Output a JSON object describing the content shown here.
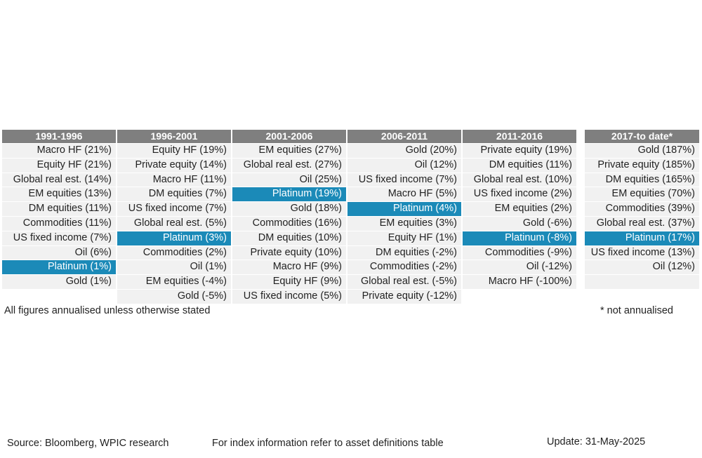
{
  "chart_data": {
    "type": "table",
    "highlight_colors": {
      "platinum_bg": "#1b8ab8",
      "header_bg": "#7f7f7f",
      "cell_bg": "#f1f1f1"
    },
    "highlight_item": "Platinum",
    "columns": [
      {
        "header": "1991-1996",
        "rows": [
          "Macro HF (21%)",
          "Equity HF (21%)",
          "Global real est. (14%)",
          "EM equities (13%)",
          "DM equities (11%)",
          "Commodities (11%)",
          "US fixed income (7%)",
          "Oil (6%)",
          "Platinum (1%)",
          "Gold (1%)"
        ]
      },
      {
        "header": "1996-2001",
        "rows": [
          "Equity HF (19%)",
          "Private equity (14%)",
          "Macro HF (11%)",
          "DM equities (7%)",
          "US fixed income (7%)",
          "Global real est. (5%)",
          "Platinum (3%)",
          "Commodities (2%)",
          "Oil (1%)",
          "EM equities (-4%)",
          "Gold (-5%)"
        ]
      },
      {
        "header": "2001-2006",
        "rows": [
          "EM equities (27%)",
          "Global real est. (27%)",
          "Oil (25%)",
          "Platinum (19%)",
          "Gold (18%)",
          "Commodities (16%)",
          "DM equities (10%)",
          "Private equity (10%)",
          "Macro HF (9%)",
          "Equity HF (9%)",
          "US fixed income (5%)"
        ]
      },
      {
        "header": "2006-2011",
        "rows": [
          "Gold (20%)",
          "Oil (12%)",
          "US fixed income (7%)",
          "Macro HF (5%)",
          "Platinum (4%)",
          "EM equities (3%)",
          "Equity HF (1%)",
          "DM equities (-2%)",
          "Commodities (-2%)",
          "Global real est. (-5%)",
          "Private equity (-12%)"
        ]
      },
      {
        "header": "2011-2016",
        "rows": [
          "Private equity (19%)",
          "DM equities (11%)",
          "Global real est. (10%)",
          "US fixed income (2%)",
          "EM equities (2%)",
          "Gold (-6%)",
          "Platinum (-8%)",
          "Commodities (-9%)",
          "Oil (-12%)",
          "Macro HF (-100%)"
        ]
      },
      {
        "header": "2017-to date*",
        "rows": [
          "Gold (187%)",
          "Private equity (185%)",
          "DM equities (165%)",
          "EM equities (70%)",
          "Commodities (39%)",
          "Global real est. (37%)",
          "Platinum (17%)",
          "US fixed income (13%)",
          "Oil (12%)"
        ]
      }
    ]
  },
  "notes": {
    "left": "All figures annualised unless otherwise stated",
    "right": "* not annualised"
  },
  "footer": {
    "source": "Source: Bloomberg, WPIC research",
    "index_info": "For index information refer to asset definitions table",
    "update": "Update: 31-May-2025"
  }
}
